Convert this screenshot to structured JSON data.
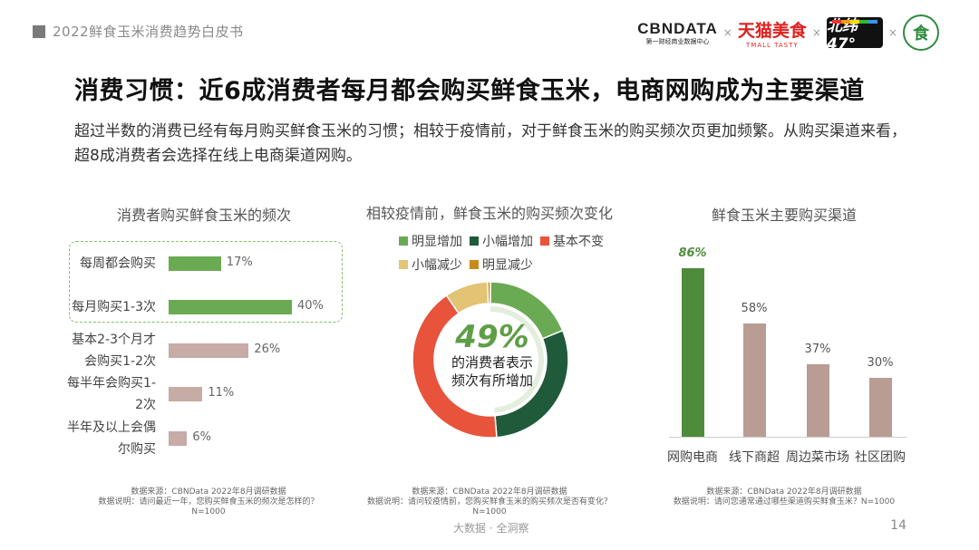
{
  "header": {
    "report_title": "2022鲜食玉米消费趋势白皮书",
    "logos": {
      "cbndata": "CBNDATA",
      "cbndata_sub": "第一财经商业数据中心",
      "tmall": "天猫美食",
      "tmall_sub": "TMALL TASTY",
      "beiwei": "北纬47°",
      "seal": "食",
      "separator": "×"
    }
  },
  "page": {
    "title": "消费习惯：近6成消费者每月都会购买鲜食玉米，电商网购成为主要渠道",
    "intro": "超过半数的消费已经有每月购买鲜食玉米的习惯；相较于疫情前，对于鲜食玉米的购买频次页更加频繁。从购买渠道来看，超8成消费者会选择在线上电商渠道网购。",
    "footer_center": "大数据 · 全洞察",
    "page_number": "14"
  },
  "colors": {
    "green": "#6aaa52",
    "dark_green": "#1f5a3a",
    "red": "#e8533c",
    "yellow": "#e3c374",
    "orange": "#c98a1b",
    "mauve": "#c7aba6",
    "bar_brown": "#b99c93",
    "channel_green": "#4e8c3c",
    "dash_green": "#7fbf6a"
  },
  "chart_data": [
    {
      "type": "bar",
      "orientation": "horizontal",
      "title": "消费者购买鲜食玉米的频次",
      "categories": [
        "每周都会购买",
        "每月购买1-3次",
        "基本2-3个月才会购买1-2次",
        "每半年会购买1-2次",
        "半年及以上会偶尔购买"
      ],
      "category_lines": [
        [
          "每周都会购买"
        ],
        [
          "每月购买1-3次"
        ],
        [
          "基本2-3个月才",
          "会购买1-2次"
        ],
        [
          "每半年会购买1-",
          "2次"
        ],
        [
          "半年及以上会偶",
          "尔购买"
        ]
      ],
      "values": [
        17,
        40,
        26,
        11,
        6
      ],
      "value_labels": [
        "17%",
        "40%",
        "26%",
        "11%",
        "6%"
      ],
      "unit": "%",
      "highlighted": [
        true,
        true,
        false,
        false,
        false
      ],
      "xlim": [
        0,
        40
      ],
      "source_lines": [
        "数据来源：CBNData 2022年8月调研数据",
        "数据说明：请问最近一年，您购买鲜食玉米的频次是怎样的？",
        "N=1000"
      ]
    },
    {
      "type": "pie",
      "variant": "donut",
      "title": "相较疫情前，鲜食玉米的购买频次变化",
      "labels": [
        "明显增加",
        "小幅增加",
        "基本不变",
        "小幅减少",
        "明显减少"
      ],
      "values": [
        19,
        30,
        42,
        9,
        0.6
      ],
      "legend_position": "top",
      "center_value": "49%",
      "center_text_lines": [
        "的消费者表示",
        "频次有所增加"
      ],
      "source_lines": [
        "数据来源：CBNData 2022年8月调研数据",
        "数据说明：请问较疫情前，您购买鲜食玉米的购买频次是否有变化？",
        "N=1000"
      ]
    },
    {
      "type": "bar",
      "orientation": "vertical",
      "title": "鲜食玉米主要购买渠道",
      "categories": [
        "网购电商",
        "线下商超",
        "周边菜市场",
        "社区团购"
      ],
      "values": [
        86,
        58,
        37,
        30
      ],
      "value_labels": [
        "86%",
        "58%",
        "37%",
        "30%"
      ],
      "unit": "%",
      "ylim": [
        0,
        86
      ],
      "source_lines": [
        "数据来源：CBNData 2022年8月调研数据",
        "数据说明：请问您通常通过哪些渠道购买鲜食玉米？N=1000"
      ]
    }
  ]
}
